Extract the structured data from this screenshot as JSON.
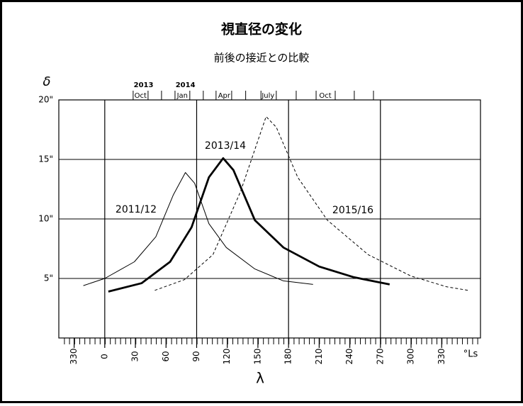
{
  "chart_data": {
    "type": "line",
    "title": "視直径の変化",
    "subtitle": "前後の接近との比較",
    "y_label": "δ",
    "x_label": "λ",
    "x_unit": "°Ls",
    "xlim": [
      -45,
      368
    ],
    "ylim": [
      0,
      20
    ],
    "xticks": [
      {
        "value": -30,
        "label": "330"
      },
      0,
      30,
      60,
      90,
      120,
      150,
      180,
      210,
      240,
      270,
      300,
      {
        "value": 330,
        "label": "330"
      }
    ],
    "yticks": [
      {
        "value": 5,
        "label": "5\""
      },
      {
        "value": 10,
        "label": "10\""
      },
      {
        "value": 15,
        "label": "15\""
      },
      {
        "value": 20,
        "label": "20\""
      }
    ],
    "x_gridlines": [
      0,
      90,
      180,
      270
    ],
    "color": "#000000",
    "top_axis": {
      "ticks": [
        27.8,
        42.4,
        55.6,
        68.8,
        83.3,
        96.5,
        109,
        124.3,
        138,
        153,
        168,
        187.5,
        207,
        225.7,
        244.4,
        263.2
      ],
      "years": [
        {
          "value": 38,
          "label": "2013"
        },
        {
          "value": 79,
          "label": "2014"
        }
      ],
      "months": [
        {
          "value": 35,
          "label": "Oct"
        },
        {
          "value": 76,
          "label": "Jan"
        },
        {
          "value": 117,
          "label": "Apr"
        },
        {
          "value": 160,
          "label": "July"
        },
        {
          "value": 216,
          "label": "Oct"
        }
      ]
    },
    "series": [
      {
        "name": "2011/12",
        "style": "thin",
        "x": [
          -21,
          0,
          29,
          50,
          67,
          79,
          88,
          102,
          119,
          147,
          175,
          204
        ],
        "y": [
          4.4,
          5.0,
          6.4,
          8.5,
          12.0,
          13.9,
          13.0,
          9.6,
          7.6,
          5.8,
          4.8,
          4.5
        ]
      },
      {
        "name": "2013/14",
        "style": "thick",
        "x": [
          3.5,
          36,
          64,
          85,
          102,
          116,
          126,
          147,
          175,
          210,
          244,
          279
        ],
        "y": [
          3.9,
          4.6,
          6.4,
          9.3,
          13.5,
          15.1,
          14.1,
          9.9,
          7.6,
          6.0,
          5.1,
          4.5
        ]
      },
      {
        "name": "2015/16",
        "style": "dashed",
        "x": [
          49,
          78,
          106,
          133,
          158,
          168,
          189,
          218,
          258,
          300,
          335,
          356
        ],
        "y": [
          4.0,
          4.9,
          7.0,
          12.3,
          18.6,
          17.7,
          13.5,
          9.9,
          7.0,
          5.2,
          4.3,
          4.0
        ]
      }
    ]
  }
}
